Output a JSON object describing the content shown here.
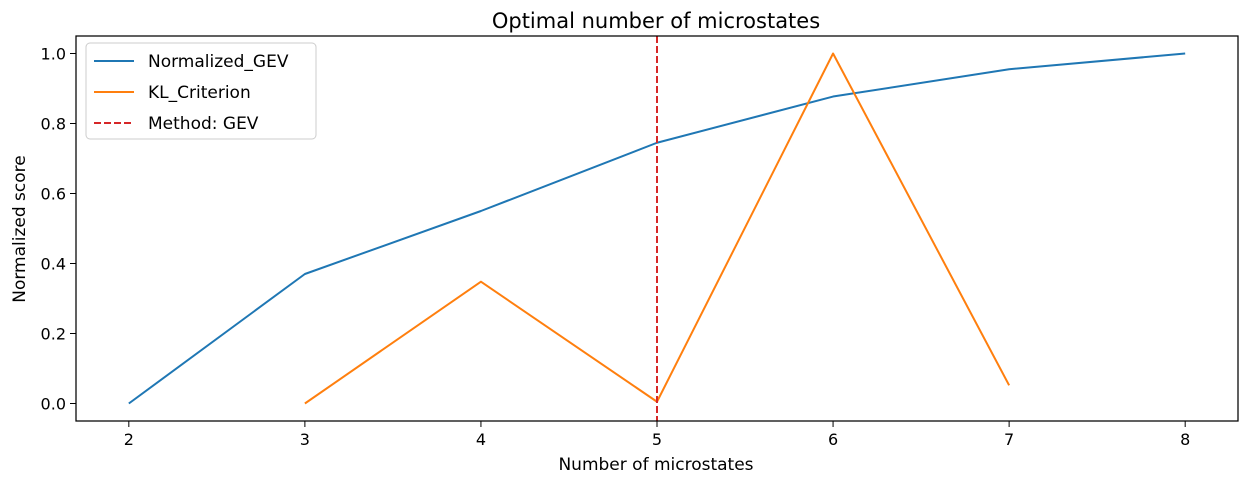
{
  "chart_data": {
    "type": "line",
    "title": "Optimal number of microstates",
    "xlabel": "Number of microstates",
    "ylabel": "Normalized score",
    "xlim": [
      1.7,
      8.3
    ],
    "ylim": [
      -0.05,
      1.05
    ],
    "xticks": [
      2,
      3,
      4,
      5,
      6,
      7,
      8
    ],
    "yticks": [
      0.0,
      0.2,
      0.4,
      0.6,
      0.8,
      1.0
    ],
    "xtick_labels": [
      "2",
      "3",
      "4",
      "5",
      "6",
      "7",
      "8"
    ],
    "ytick_labels": [
      "0.0",
      "0.2",
      "0.4",
      "0.6",
      "0.8",
      "1.0"
    ],
    "grid": false,
    "legend_position": "top-left",
    "series": [
      {
        "name": "Normalized_GEV",
        "color": "#1f77b4",
        "style": "solid",
        "x": [
          2,
          3,
          4,
          5,
          6,
          7,
          8
        ],
        "y": [
          0.0,
          0.37,
          0.55,
          0.745,
          0.877,
          0.955,
          1.0
        ]
      },
      {
        "name": "KL_Criterion",
        "color": "#ff7f0e",
        "style": "solid",
        "x": [
          3,
          4,
          5,
          6,
          7
        ],
        "y": [
          0.0,
          0.348,
          0.005,
          1.0,
          0.052
        ]
      }
    ],
    "vlines": [
      {
        "name": "Method: GEV",
        "x": 5,
        "color": "#d62728",
        "style": "dashed"
      }
    ]
  }
}
